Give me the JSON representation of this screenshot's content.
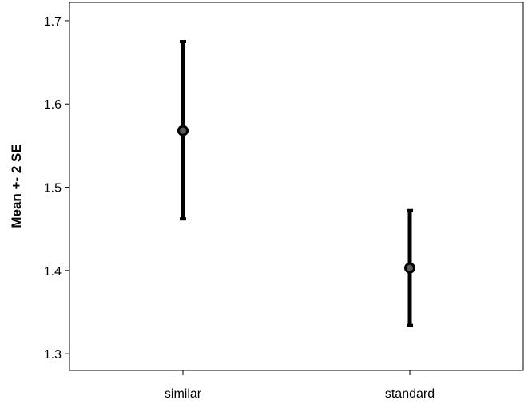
{
  "chart_data": {
    "type": "errorbar",
    "title": "",
    "xlabel": "",
    "ylabel": "Mean +- 2 SE",
    "categories": [
      "similar",
      "standard"
    ],
    "series": [
      {
        "mean": [
          1.568,
          1.403
        ],
        "lower": [
          1.462,
          1.334
        ],
        "upper": [
          1.675,
          1.472
        ]
      }
    ],
    "yticks": [
      "1.3",
      "1.4",
      "1.5",
      "1.6",
      "1.7"
    ],
    "ylim": [
      1.28,
      1.722
    ],
    "grid": false,
    "legend": "none"
  },
  "colors": {
    "background": "#ffffff",
    "axis": "#000000",
    "errorbar": "#000000",
    "marker_fill": "#5a5a5a"
  }
}
